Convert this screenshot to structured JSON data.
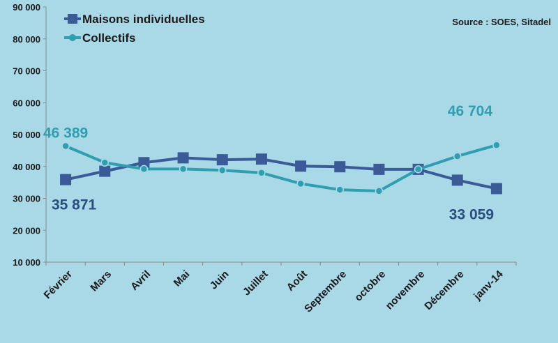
{
  "chart_data": {
    "type": "line",
    "source": "Source : SOES, Sitadel",
    "categories": [
      "Février",
      "Mars",
      "Avril",
      "Mai",
      "Juin",
      "Juillet",
      "Août",
      "Septembre",
      "octobre",
      "novembre",
      "Décembre",
      "janv-14"
    ],
    "ylim": [
      10000,
      90000
    ],
    "yticks": [
      "10 000",
      "20 000",
      "30 000",
      "40 000",
      "50 000",
      "60 000",
      "70 000",
      "80 000",
      "90 000"
    ],
    "series": [
      {
        "name": "Maisons individuelles",
        "color": "#3a5a98",
        "marker": "square",
        "values": [
          35871,
          38500,
          41200,
          42700,
          42100,
          42300,
          40100,
          39900,
          39100,
          39100,
          35700,
          33059
        ]
      },
      {
        "name": "Collectifs",
        "color": "#2f9fb0",
        "marker": "circle",
        "values": [
          46389,
          41200,
          39200,
          39200,
          38800,
          38000,
          34600,
          32700,
          32300,
          39100,
          43200,
          46704
        ]
      }
    ],
    "data_labels": [
      {
        "series": 1,
        "index": 0,
        "text": "46 389"
      },
      {
        "series": 0,
        "index": 0,
        "text": "35 871"
      },
      {
        "series": 1,
        "index": 11,
        "text": "46 704"
      },
      {
        "series": 0,
        "index": 11,
        "text": "33 059"
      }
    ],
    "legend": "top-left",
    "grid": false
  }
}
